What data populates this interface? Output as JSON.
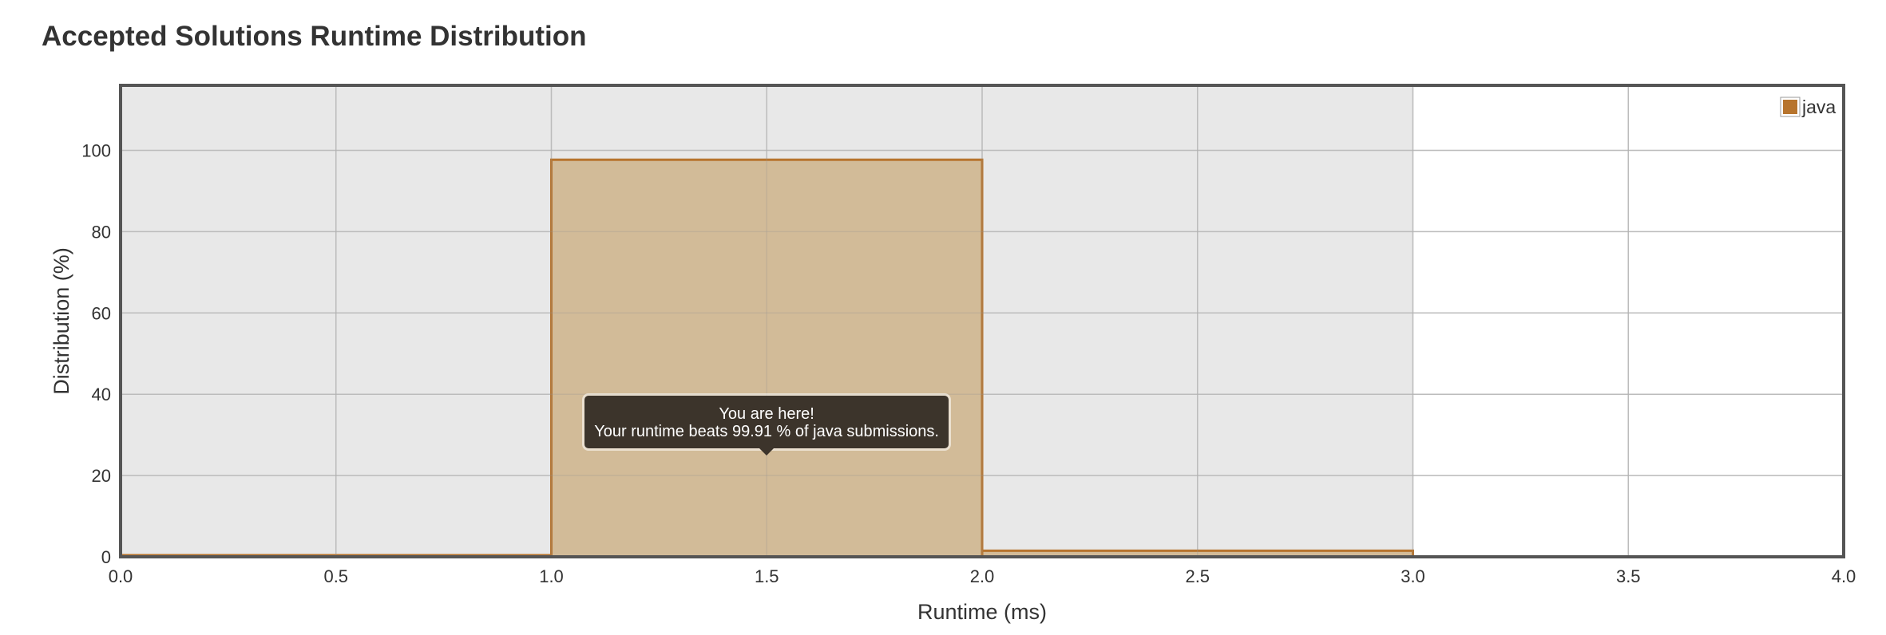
{
  "page": {
    "title": "Accepted Solutions Runtime Distribution"
  },
  "chart_data": {
    "type": "bar",
    "xlabel": "Runtime (ms)",
    "ylabel": "Distribution (%)",
    "xlim": [
      0,
      4
    ],
    "ylim": [
      0,
      116
    ],
    "xticks": [
      "0.0",
      "0.5",
      "1.0",
      "1.5",
      "2.0",
      "2.5",
      "3.0",
      "3.5",
      "4.0"
    ],
    "yticks": [
      "0",
      "20",
      "40",
      "60",
      "80",
      "100"
    ],
    "grid": true,
    "legend": {
      "placement": "top-right",
      "entries": [
        "java"
      ]
    },
    "series": [
      {
        "name": "java",
        "color": "#b7742d",
        "fill": "#d1b893",
        "bins": [
          {
            "x0": 0.0,
            "x1": 1.0,
            "value": 0.4
          },
          {
            "x0": 1.0,
            "x1": 2.0,
            "value": 97.7
          },
          {
            "x0": 2.0,
            "x1": 3.0,
            "value": 1.5
          },
          {
            "x0": 3.0,
            "x1": 4.0,
            "value": 0
          }
        ]
      }
    ],
    "shaded_range": {
      "x0": 0.0,
      "x1": 3.0,
      "color": "#e8e8e8"
    },
    "annotation": {
      "x": 1.5,
      "y": 25,
      "lines": [
        "You are here!",
        "Your runtime beats 99.91 % of java submissions."
      ]
    }
  }
}
